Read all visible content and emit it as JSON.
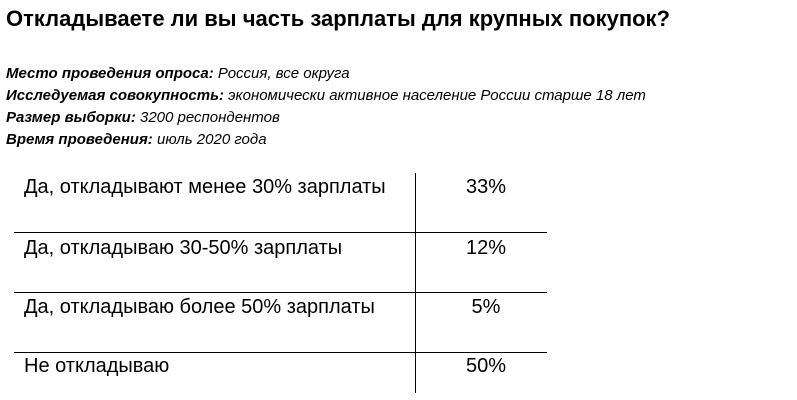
{
  "title": "Откладываете ли вы часть зарплаты для крупных покупок?",
  "survey_info": [
    {
      "key": "Место проведения опроса:",
      "value": "Россия, все округа"
    },
    {
      "key": "Исследуемая совокупность:",
      "value": "экономически активное население России старше 18 лет"
    },
    {
      "key": "Размер выборки:",
      "value": "3200 респондентов"
    },
    {
      "key": "Время проведения:",
      "value": "июль 2020 года"
    }
  ],
  "chart_data": {
    "type": "table",
    "title": "Откладываете ли вы часть зарплаты для крупных покупок?",
    "categories": [
      "Да, откладывают менее 30% зарплаты",
      "Да, откладываю 30-50% зарплаты",
      "Да, откладываю более 50% зарплаты",
      "Не откладываю"
    ],
    "values": [
      33,
      12,
      5,
      50
    ],
    "value_labels": [
      "33%",
      "12%",
      "5%",
      "50%"
    ]
  }
}
